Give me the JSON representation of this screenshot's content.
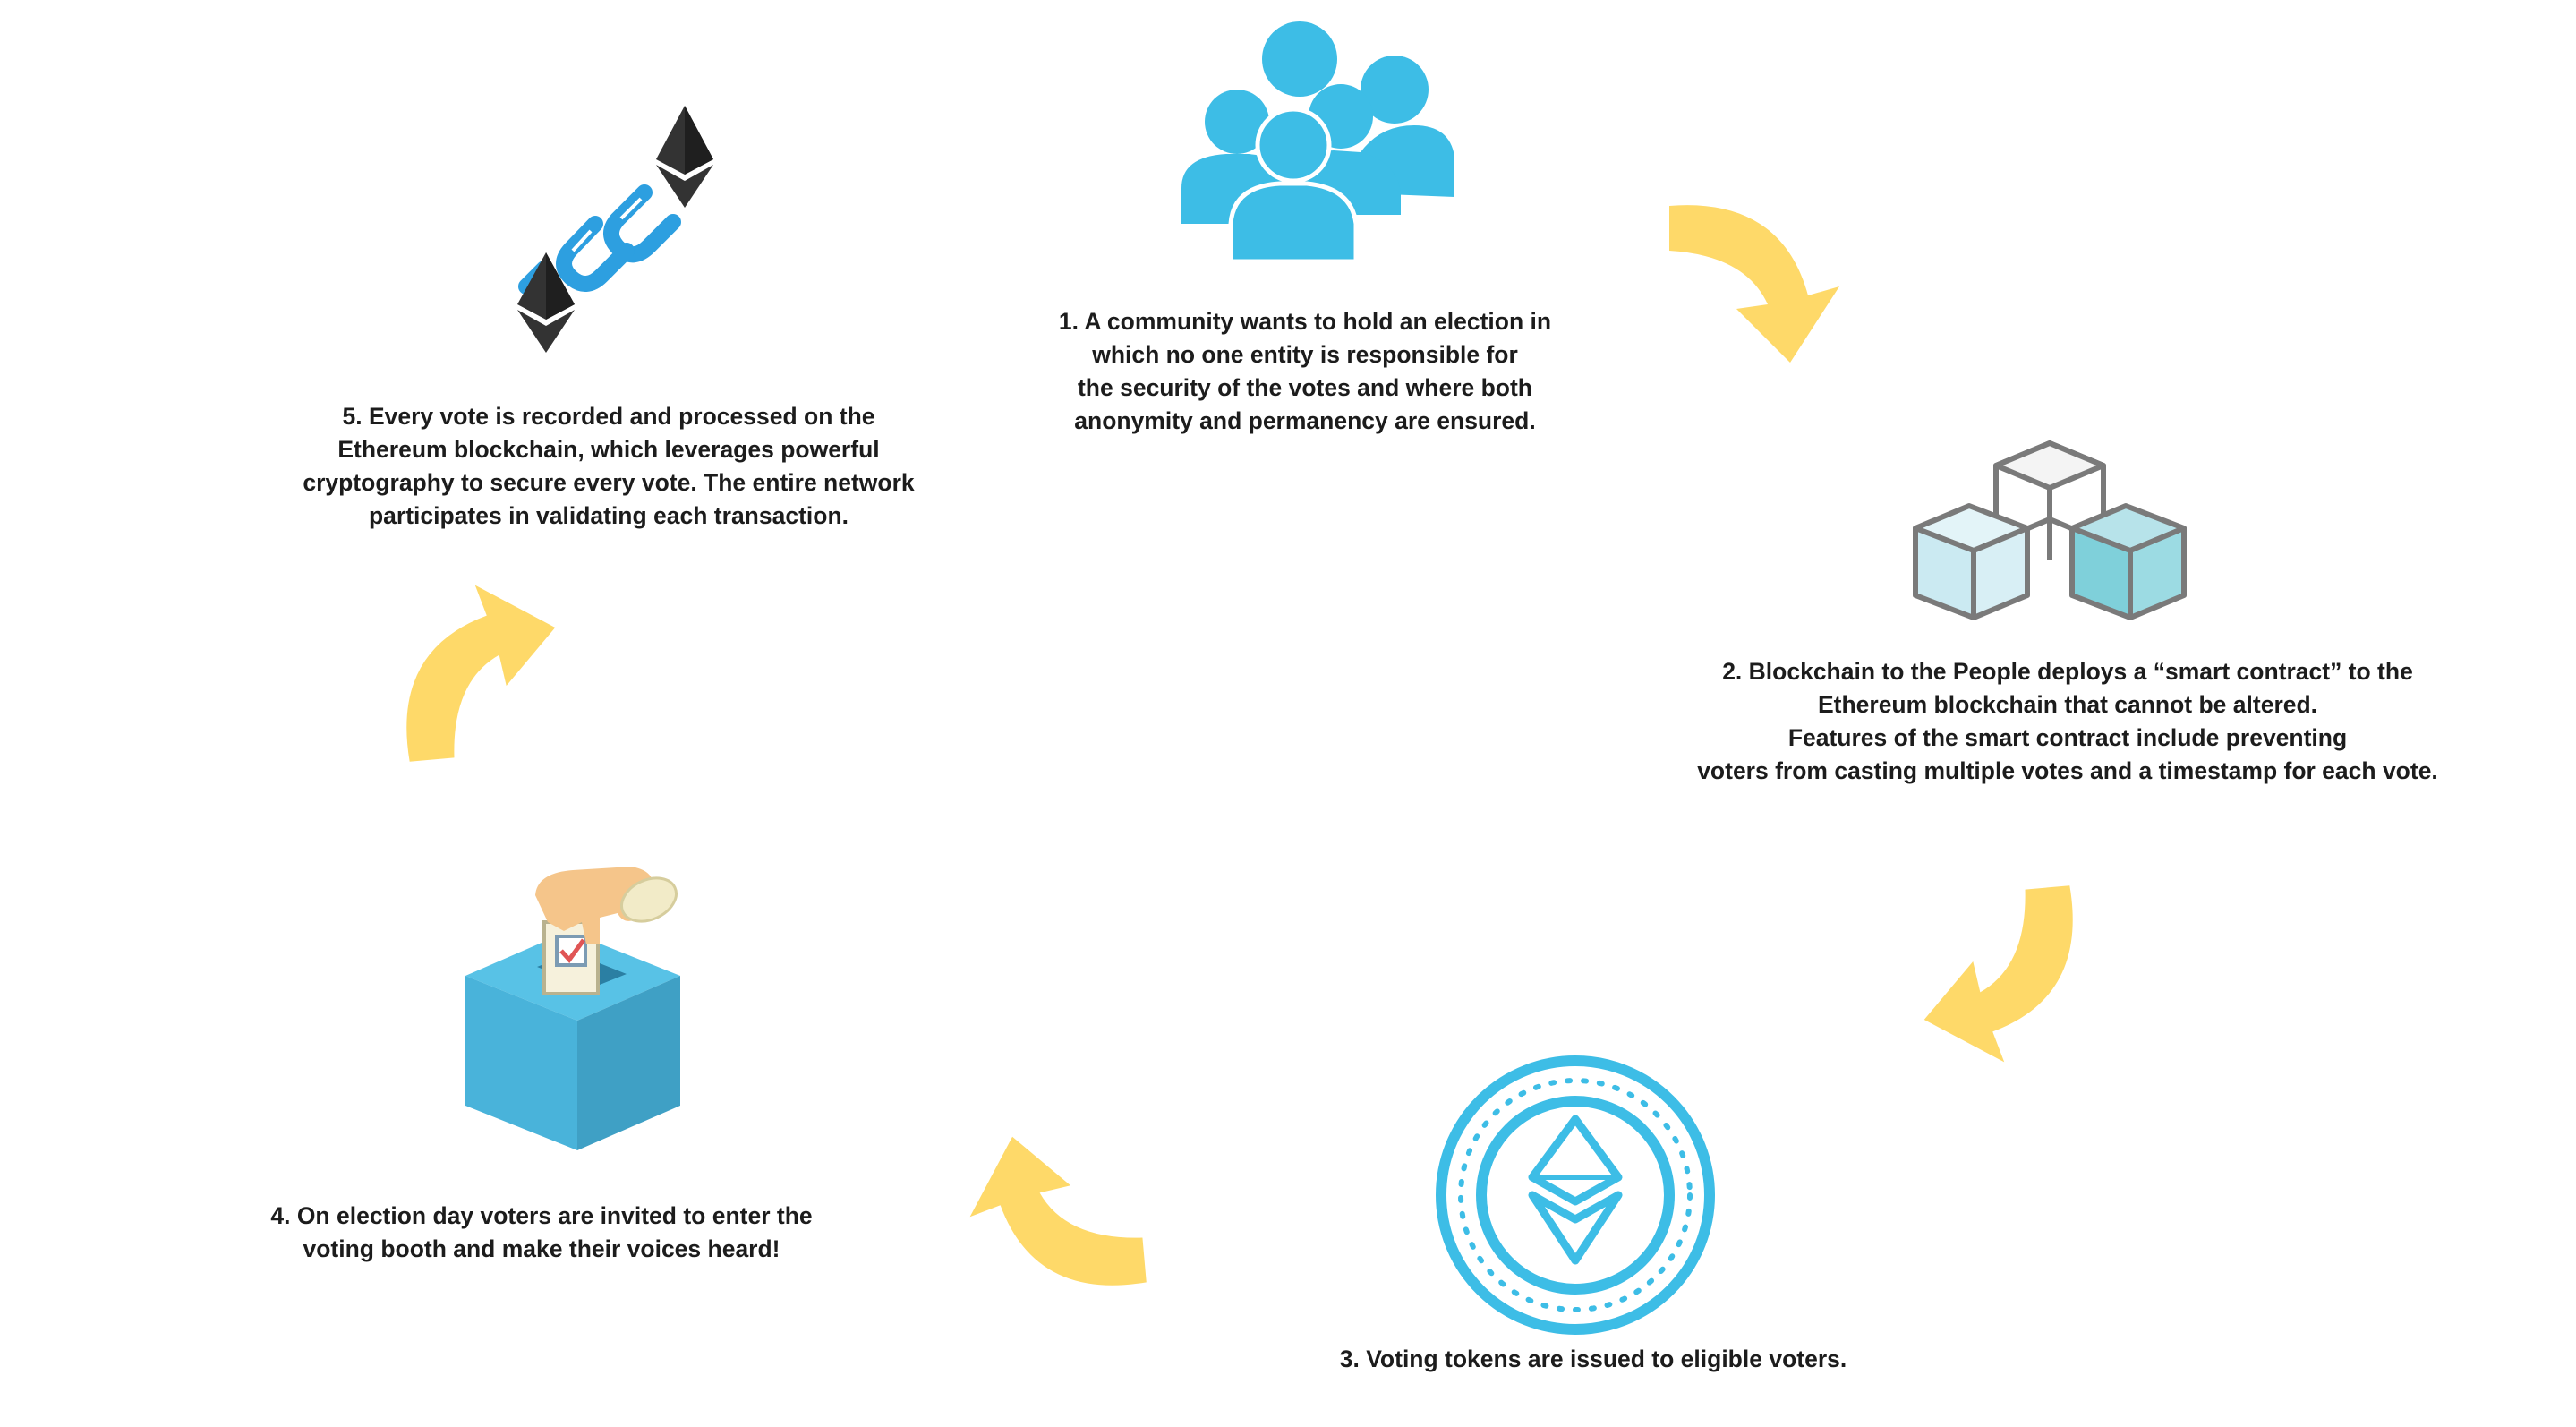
{
  "steps": [
    {
      "id": 1,
      "icon": "community-people-icon",
      "lines": [
        "1. A community wants to hold an election in",
        "which no one entity is responsible for",
        "the security of the votes and where both",
        "anonymity and permanency are ensured."
      ]
    },
    {
      "id": 2,
      "icon": "blockchain-cubes-icon",
      "lines": [
        "2. Blockchain to the People deploys a “smart contract” to the",
        "Ethereum blockchain that cannot be altered.",
        "Features of the smart contract include preventing",
        "voters from casting multiple votes and a timestamp for each vote."
      ]
    },
    {
      "id": 3,
      "icon": "ethereum-token-coin-icon",
      "lines": [
        "3. Voting tokens are issued to eligible voters."
      ]
    },
    {
      "id": 4,
      "icon": "ballot-box-icon",
      "lines": [
        "4. On election day voters are invited to enter the",
        "voting booth and make their voices heard!"
      ]
    },
    {
      "id": 5,
      "icon": "ethereum-chain-link-icon",
      "lines": [
        "5. Every vote is recorded and processed on the",
        "Ethereum blockchain, which leverages powerful",
        "cryptography to secure every vote. The entire network",
        "participates in validating each transaction."
      ]
    }
  ],
  "colors": {
    "arrow": "#FED969",
    "people": "#3DBDE6",
    "text": "#1C1C1C",
    "coin": "#3DBDE6",
    "ballot_box": "#4FB4D8",
    "cube_outline": "#7A7A7A",
    "ether_dark": "#333333"
  }
}
